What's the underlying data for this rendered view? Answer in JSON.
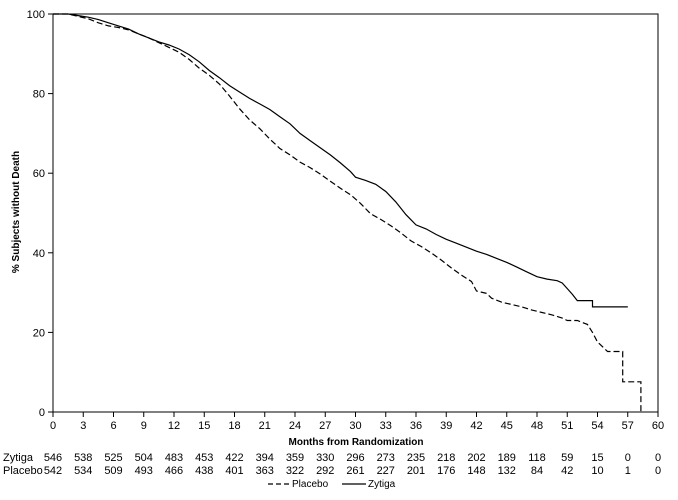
{
  "chart_data": {
    "type": "line",
    "title": "",
    "xlabel": "Months from Randomization",
    "ylabel": "% Subjects without Death",
    "xlim": [
      0,
      60
    ],
    "ylim": [
      0,
      100
    ],
    "x_ticks": [
      0,
      3,
      6,
      9,
      12,
      15,
      18,
      21,
      24,
      27,
      30,
      33,
      36,
      39,
      42,
      45,
      48,
      51,
      54,
      57,
      60
    ],
    "y_ticks": [
      0,
      20,
      40,
      60,
      80,
      100
    ],
    "grid": false,
    "legend_position": "bottom-center",
    "series": [
      {
        "name": "Zytiga",
        "style": "solid",
        "color": "#000000",
        "points": [
          [
            0,
            100
          ],
          [
            1.5,
            100
          ],
          [
            2.5,
            99.6
          ],
          [
            3.5,
            99.2
          ],
          [
            4.5,
            98.6
          ],
          [
            5.5,
            97.8
          ],
          [
            6.5,
            97.0
          ],
          [
            7.5,
            96.2
          ],
          [
            8.5,
            95.0
          ],
          [
            9.5,
            94.0
          ],
          [
            10.5,
            93.0
          ],
          [
            11.5,
            92.2
          ],
          [
            12.5,
            91.2
          ],
          [
            13.5,
            89.8
          ],
          [
            14.5,
            88.0
          ],
          [
            15.5,
            85.8
          ],
          [
            16.5,
            84.0
          ],
          [
            17.5,
            82.0
          ],
          [
            18.5,
            80.4
          ],
          [
            19.5,
            78.8
          ],
          [
            20.5,
            77.4
          ],
          [
            21.5,
            76.0
          ],
          [
            22.5,
            74.2
          ],
          [
            23.5,
            72.4
          ],
          [
            24.5,
            70.0
          ],
          [
            25.5,
            68.2
          ],
          [
            26.5,
            66.4
          ],
          [
            27.5,
            64.6
          ],
          [
            28.5,
            62.6
          ],
          [
            29.5,
            60.4
          ],
          [
            30,
            59.0
          ],
          [
            31,
            58.2
          ],
          [
            32,
            57.2
          ],
          [
            33,
            55.4
          ],
          [
            34,
            52.8
          ],
          [
            35,
            49.6
          ],
          [
            36,
            47.0
          ],
          [
            37,
            46.0
          ],
          [
            38,
            44.6
          ],
          [
            39,
            43.4
          ],
          [
            40,
            42.4
          ],
          [
            41,
            41.4
          ],
          [
            42,
            40.4
          ],
          [
            43,
            39.6
          ],
          [
            44,
            38.6
          ],
          [
            45,
            37.6
          ],
          [
            46,
            36.4
          ],
          [
            47,
            35.2
          ],
          [
            48,
            34.0
          ],
          [
            49,
            33.4
          ],
          [
            50,
            33.0
          ],
          [
            50.5,
            32.4
          ],
          [
            51,
            31.0
          ],
          [
            51.5,
            29.6
          ],
          [
            52,
            28.0
          ],
          [
            53.5,
            28.0
          ],
          [
            53.5,
            26.4
          ],
          [
            57,
            26.4
          ]
        ]
      },
      {
        "name": "Placebo",
        "style": "dashed",
        "color": "#000000",
        "points": [
          [
            0,
            100
          ],
          [
            1.5,
            100
          ],
          [
            2.5,
            99.4
          ],
          [
            3.5,
            98.8
          ],
          [
            4.5,
            97.8
          ],
          [
            5.5,
            97.0
          ],
          [
            6.5,
            96.6
          ],
          [
            7.5,
            96.0
          ],
          [
            8.5,
            95.0
          ],
          [
            9.5,
            94.0
          ],
          [
            10.5,
            92.8
          ],
          [
            11.5,
            91.6
          ],
          [
            12.5,
            90.4
          ],
          [
            13.5,
            88.6
          ],
          [
            14.5,
            86.4
          ],
          [
            15.5,
            84.6
          ],
          [
            16.5,
            82.4
          ],
          [
            17.5,
            79.4
          ],
          [
            18.5,
            76.2
          ],
          [
            19.5,
            73.4
          ],
          [
            20.5,
            71.2
          ],
          [
            21.5,
            68.6
          ],
          [
            22.5,
            66.2
          ],
          [
            23.5,
            64.6
          ],
          [
            24.5,
            62.8
          ],
          [
            25.5,
            61.4
          ],
          [
            26.5,
            59.8
          ],
          [
            27.5,
            58.0
          ],
          [
            28.5,
            56.2
          ],
          [
            29.5,
            54.6
          ],
          [
            30.5,
            52.4
          ],
          [
            31.5,
            49.8
          ],
          [
            32.5,
            48.4
          ],
          [
            33.5,
            46.8
          ],
          [
            34.5,
            45.0
          ],
          [
            35.5,
            43.0
          ],
          [
            36.5,
            41.6
          ],
          [
            37.5,
            40.0
          ],
          [
            38.5,
            38.2
          ],
          [
            39.5,
            36.2
          ],
          [
            40.5,
            34.4
          ],
          [
            41.5,
            32.8
          ],
          [
            42,
            30.4
          ],
          [
            43,
            29.8
          ],
          [
            43.5,
            28.6
          ],
          [
            44.5,
            27.6
          ],
          [
            45.5,
            27.0
          ],
          [
            46.5,
            26.4
          ],
          [
            47.5,
            25.6
          ],
          [
            48.5,
            25.0
          ],
          [
            49.5,
            24.4
          ],
          [
            50.5,
            23.6
          ],
          [
            51,
            23.0
          ],
          [
            52,
            23.0
          ],
          [
            53,
            22.0
          ],
          [
            53.5,
            20.0
          ],
          [
            54,
            17.6
          ],
          [
            55,
            15.2
          ],
          [
            56.5,
            15.2
          ],
          [
            56.5,
            7.6
          ],
          [
            58.3,
            7.6
          ],
          [
            58.3,
            0
          ]
        ]
      }
    ],
    "risk_table": {
      "times": [
        0,
        3,
        6,
        9,
        12,
        15,
        18,
        21,
        24,
        27,
        30,
        33,
        36,
        39,
        42,
        45,
        48,
        51,
        54,
        57,
        60
      ],
      "rows": [
        {
          "label": "Zytiga",
          "values": [
            "546",
            "538",
            "525",
            "504",
            "483",
            "453",
            "422",
            "394",
            "359",
            "330",
            "296",
            "273",
            "235",
            "218",
            "202",
            "189",
            "118",
            "59",
            "15",
            "0",
            "0"
          ]
        },
        {
          "label": "Placebo",
          "values": [
            "542",
            "534",
            "509",
            "493",
            "466",
            "438",
            "401",
            "363",
            "322",
            "292",
            "261",
            "227",
            "201",
            "176",
            "148",
            "132",
            "84",
            "42",
            "10",
            "1",
            "0"
          ]
        }
      ]
    },
    "legend": [
      {
        "label": "Placebo",
        "style": "dashed"
      },
      {
        "label": "Zytiga",
        "style": "solid"
      }
    ]
  }
}
